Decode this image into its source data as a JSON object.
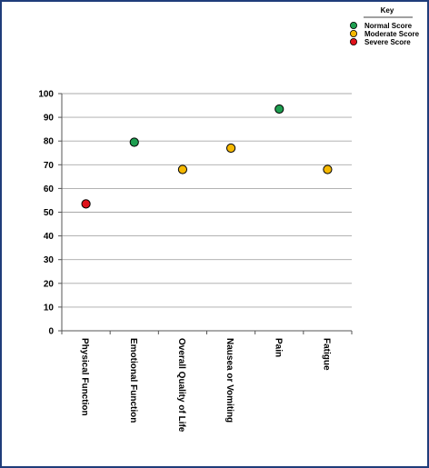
{
  "legend": {
    "title": "Key",
    "items": [
      {
        "label": "Normal Score",
        "color": "#1e9e50"
      },
      {
        "label": "Moderate Score",
        "color": "#f5b800"
      },
      {
        "label": "Severe Score",
        "color": "#e0121b"
      }
    ]
  },
  "chart_data": {
    "type": "scatter",
    "title": "",
    "xlabel": "",
    "ylabel": "",
    "ylim": [
      0,
      100
    ],
    "yticks": [
      "0",
      "10",
      "20",
      "30",
      "40",
      "50",
      "60",
      "70",
      "80",
      "90",
      "100"
    ],
    "grid": true,
    "legend_position": "top-right",
    "categories": [
      "Physical Function",
      "Emotional Function",
      "Overall Quality of Life",
      "Nausea or Vomiting",
      "Pain",
      "Fatigue"
    ],
    "values": [
      53.5,
      79.5,
      68,
      77,
      93.5,
      68
    ],
    "levels": [
      "severe",
      "normal",
      "moderate",
      "moderate",
      "normal",
      "moderate"
    ],
    "colors": {
      "normal": "#1e9e50",
      "moderate": "#f5b800",
      "severe": "#e0121b"
    }
  }
}
